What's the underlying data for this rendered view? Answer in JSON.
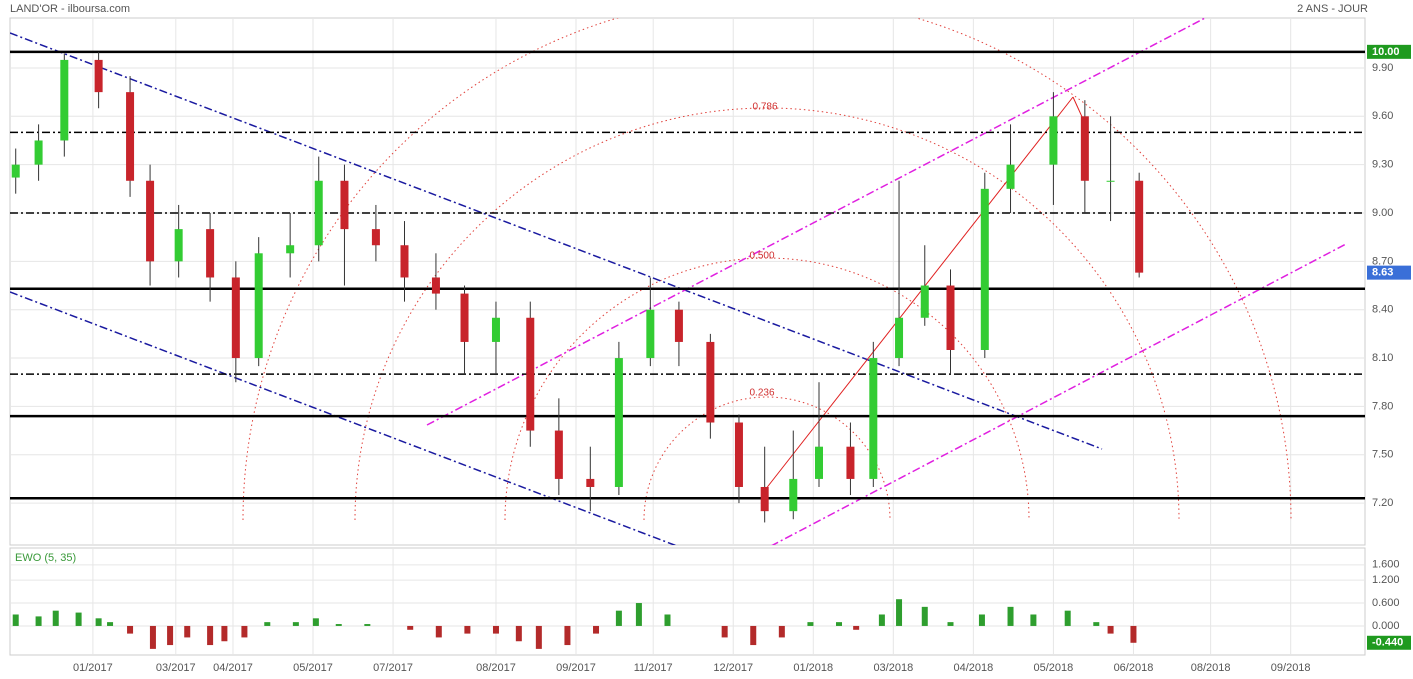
{
  "chart_data": [
    {
      "type": "candlestick",
      "title": "LAND'OR - ilboursa.com",
      "subtitle": "2 ANS - JOUR",
      "x": [
        2,
        10,
        19,
        31,
        42,
        49,
        59,
        70,
        79,
        87,
        98,
        108,
        117,
        128,
        138,
        149,
        159,
        170,
        182,
        192,
        203,
        213,
        224,
        234,
        245,
        255,
        264,
        274,
        283,
        294,
        302,
        311,
        320,
        329,
        341,
        350,
        365,
        376,
        385,
        395
      ],
      "open": [
        9.22,
        9.3,
        9.45,
        9.95,
        9.75,
        9.2,
        8.7,
        8.9,
        8.6,
        8.1,
        8.75,
        8.8,
        9.2,
        8.9,
        8.8,
        8.6,
        8.5,
        8.2,
        8.35,
        7.65,
        7.35,
        7.3,
        8.1,
        8.4,
        8.2,
        7.7,
        7.3,
        7.15,
        7.35,
        7.55,
        7.35,
        8.1,
        8.35,
        8.55,
        8.15,
        9.15,
        9.3,
        9.6,
        9.2,
        9.2
      ],
      "high": [
        9.4,
        9.55,
        9.99,
        10.0,
        9.85,
        9.3,
        9.05,
        9.0,
        8.7,
        8.85,
        9.0,
        9.35,
        9.3,
        9.05,
        8.95,
        8.75,
        8.55,
        8.45,
        8.45,
        7.85,
        7.55,
        8.2,
        8.6,
        8.45,
        8.25,
        7.75,
        7.55,
        7.65,
        7.95,
        7.7,
        8.2,
        9.2,
        8.8,
        8.65,
        9.25,
        9.55,
        9.75,
        9.7,
        9.6,
        9.25
      ],
      "low": [
        9.12,
        9.2,
        9.35,
        9.65,
        9.1,
        8.55,
        8.6,
        8.45,
        7.95,
        8.05,
        8.6,
        8.7,
        8.55,
        8.7,
        8.45,
        8.4,
        8.0,
        8.0,
        7.55,
        7.25,
        7.15,
        7.25,
        8.05,
        8.05,
        7.6,
        7.2,
        7.08,
        7.1,
        7.3,
        7.25,
        7.3,
        8.05,
        8.3,
        8.0,
        8.1,
        9.0,
        9.05,
        9.0,
        8.95,
        8.6
      ],
      "close": [
        9.3,
        9.45,
        9.95,
        9.75,
        9.2,
        8.7,
        8.9,
        8.6,
        8.1,
        8.75,
        8.8,
        9.2,
        8.9,
        8.8,
        8.6,
        8.5,
        8.2,
        8.35,
        7.65,
        7.35,
        7.3,
        8.1,
        8.4,
        8.2,
        7.7,
        7.3,
        7.15,
        7.35,
        7.55,
        7.35,
        8.1,
        8.35,
        8.55,
        8.15,
        9.15,
        9.3,
        9.6,
        9.2,
        9.2,
        8.63
      ],
      "up_color": "#33cc33",
      "down_color": "#c8242b",
      "xlim": [
        0,
        474
      ],
      "xticks": [
        {
          "value": 29,
          "label": "01/2017"
        },
        {
          "value": 58,
          "label": "03/2017"
        },
        {
          "value": 78,
          "label": "04/2017"
        },
        {
          "value": 106,
          "label": "05/2017"
        },
        {
          "value": 134,
          "label": "07/2017"
        },
        {
          "value": 170,
          "label": "08/2017"
        },
        {
          "value": 198,
          "label": "09/2017"
        },
        {
          "value": 225,
          "label": "11/2017"
        },
        {
          "value": 253,
          "label": "12/2017"
        },
        {
          "value": 281,
          "label": "01/2018"
        },
        {
          "value": 309,
          "label": "03/2018"
        },
        {
          "value": 337,
          "label": "04/2018"
        },
        {
          "value": 365,
          "label": "05/2018"
        },
        {
          "value": 393,
          "label": "06/2018"
        },
        {
          "value": 420,
          "label": "08/2018"
        },
        {
          "value": 448,
          "label": "09/2018"
        }
      ],
      "ylim": [
        6.94,
        10.21
      ],
      "yticks": [
        {
          "value": 7.2,
          "label": "7.20"
        },
        {
          "value": 7.5,
          "label": "7.50"
        },
        {
          "value": 7.8,
          "label": "7.80"
        },
        {
          "value": 8.1,
          "label": "8.10"
        },
        {
          "value": 8.4,
          "label": "8.40"
        },
        {
          "value": 8.7,
          "label": "8.70"
        },
        {
          "value": 9,
          "label": "9.00"
        },
        {
          "value": 9.3,
          "label": "9.30"
        },
        {
          "value": 9.6,
          "label": "9.60"
        },
        {
          "value": 9.9,
          "label": "9.90"
        }
      ],
      "levels": [
        10.0,
        8.53,
        7.74,
        7.23
      ],
      "dashed_levels": [
        9.5,
        9.0,
        8.0
      ],
      "price_tags": [
        {
          "value": 10.0,
          "label": "10.00",
          "color": "#1f9a1f"
        },
        {
          "value": 8.63,
          "label": "8.63",
          "color": "#3a6fd8"
        }
      ],
      "annotations": [
        "0.786",
        "0.500",
        "0.236"
      ],
      "grid": true
    },
    {
      "type": "bar",
      "title": "EWO (5, 35)",
      "x": [
        2,
        10,
        16,
        24,
        31,
        35,
        42,
        50,
        56,
        62,
        70,
        75,
        82,
        90,
        100,
        107,
        115,
        125,
        140,
        150,
        160,
        170,
        178,
        185,
        195,
        205,
        213,
        220,
        230,
        240,
        250,
        260,
        270,
        280,
        290,
        296,
        305,
        311,
        320,
        329,
        340,
        350,
        358,
        370,
        380,
        385,
        393
      ],
      "values": [
        0.3,
        0.25,
        0.4,
        0.35,
        0.2,
        0.1,
        -0.2,
        -0.6,
        -0.5,
        -0.3,
        -0.5,
        -0.4,
        -0.3,
        0.1,
        0.1,
        0.2,
        0.05,
        0.05,
        -0.1,
        -0.3,
        -0.2,
        -0.2,
        -0.4,
        -0.6,
        -0.5,
        -0.2,
        0.4,
        0.6,
        0.3,
        0.0,
        -0.3,
        -0.5,
        -0.3,
        0.1,
        0.1,
        -0.1,
        0.3,
        0.7,
        0.5,
        0.1,
        0.3,
        0.5,
        0.3,
        0.4,
        0.1,
        -0.2,
        -0.44
      ],
      "pos_color": "#2e9e2e",
      "neg_color": "#b32a2a",
      "ylim": [
        -0.76,
        2.04
      ],
      "yticks": [
        {
          "value": 0,
          "label": "0.000"
        },
        {
          "value": 0.6,
          "label": "0.600"
        },
        {
          "value": 1.2,
          "label": "1.200"
        },
        {
          "value": 1.6,
          "label": "1.600"
        }
      ],
      "tag": {
        "value": -0.44,
        "label": "-0.440",
        "color": "#1f9a1f"
      },
      "grid": true
    }
  ]
}
